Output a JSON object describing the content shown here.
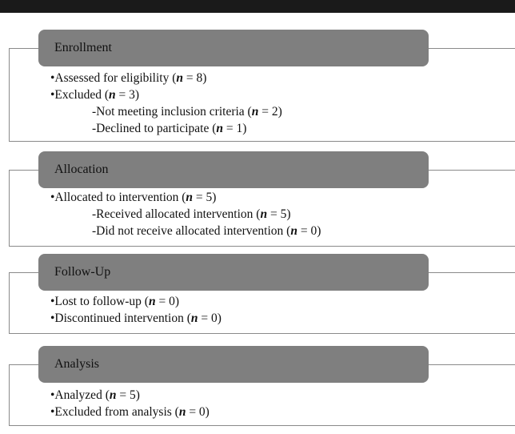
{
  "sections": [
    {
      "title": "Enrollment",
      "items": [
        {
          "level": 1,
          "prefix": "•Assessed for eligibility (",
          "n_label": "n",
          "suffix": " = 8)"
        },
        {
          "level": 1,
          "prefix": "•Excluded (",
          "n_label": "n",
          "suffix": " = 3)"
        },
        {
          "level": 2,
          "prefix": "-Not meeting inclusion criteria (",
          "n_label": "n",
          "suffix": " = 2)"
        },
        {
          "level": 2,
          "prefix": "-Declined to participate (",
          "n_label": "n",
          "suffix": " = 1)"
        }
      ]
    },
    {
      "title": "Allocation",
      "items": [
        {
          "level": 1,
          "prefix": "•Allocated to intervention (",
          "n_label": "n",
          "suffix": " = 5)"
        },
        {
          "level": 2,
          "prefix": "-Received allocated intervention (",
          "n_label": "n",
          "suffix": " = 5)"
        },
        {
          "level": 2,
          "prefix": "-Did not receive allocated intervention (",
          "n_label": "n",
          "suffix": " = 0)"
        }
      ]
    },
    {
      "title": "Follow-Up",
      "items": [
        {
          "level": 1,
          "prefix": "•Lost to follow-up (",
          "n_label": "n",
          "suffix": " = 0)"
        },
        {
          "level": 1,
          "prefix": "•Discontinued intervention  (",
          "n_label": "n",
          "suffix": " = 0)"
        }
      ]
    },
    {
      "title": "Analysis",
      "items": [
        {
          "level": 1,
          "prefix": "•Analyzed (",
          "n_label": "n",
          "suffix": " = 5)"
        },
        {
          "level": 1,
          "prefix": "•Excluded from analysis (",
          "n_label": "n",
          "suffix": " = 0)"
        }
      ]
    }
  ]
}
